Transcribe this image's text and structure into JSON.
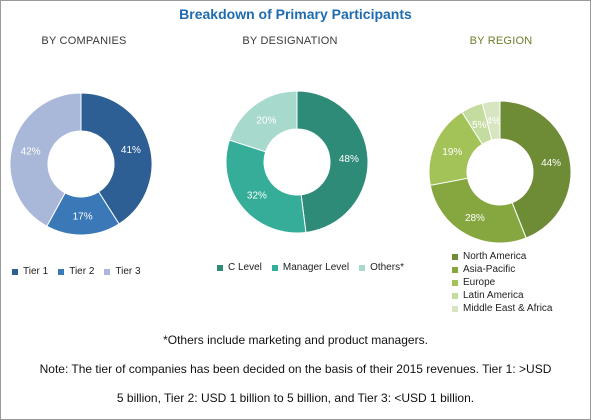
{
  "title": "Breakdown of Primary Participants",
  "footnote": "*Others include marketing and product managers.",
  "note_line1": "Note: The tier of companies has been decided on the basis of their 2015 revenues. Tier 1: >USD",
  "note_line2": "5 billion, Tier 2: USD 1 billion to 5 billion, and Tier 3: <USD 1 billion.",
  "chart_data": [
    {
      "type": "pie",
      "title": "BY COMPANIES",
      "title_color": "#3a3a3a",
      "categories": [
        "Tier 1",
        "Tier 2",
        "Tier 3"
      ],
      "values": [
        41,
        17,
        42
      ],
      "labels": [
        "41%",
        "17%",
        "42%"
      ],
      "colors": [
        "#2d5f94",
        "#3a78b7",
        "#a9b8d8"
      ],
      "label_colors": [
        "#ffffff",
        "#ffffff",
        "#ffffff"
      ],
      "legend_position": "bottom"
    },
    {
      "type": "pie",
      "title": "BY DESIGNATION",
      "title_color": "#3a3a3a",
      "categories": [
        "C Level",
        "Manager Level",
        "Others*"
      ],
      "values": [
        48,
        32,
        20
      ],
      "labels": [
        "48%",
        "32%",
        "20%"
      ],
      "colors": [
        "#2e8b78",
        "#35ad98",
        "#a8d9cd"
      ],
      "label_colors": [
        "#ffffff",
        "#ffffff",
        "#ffffff"
      ],
      "legend_position": "bottom"
    },
    {
      "type": "pie",
      "title": "BY REGION",
      "title_color": "#6b7f2a",
      "categories": [
        "North America",
        "Asia-Pacific",
        "Europe",
        "Latin America",
        "Middle East & Africa"
      ],
      "values": [
        44,
        28,
        19,
        5,
        4
      ],
      "labels": [
        "44%",
        "28%",
        "19%",
        "5%",
        "4%"
      ],
      "colors": [
        "#6e8b35",
        "#86a73f",
        "#a3c257",
        "#c5dca0",
        "#d7e6c1"
      ],
      "label_colors": [
        "#ffffff",
        "#ffffff",
        "#ffffff",
        "#ffffff",
        "#ffffff"
      ],
      "legend_position": "bottom"
    }
  ]
}
